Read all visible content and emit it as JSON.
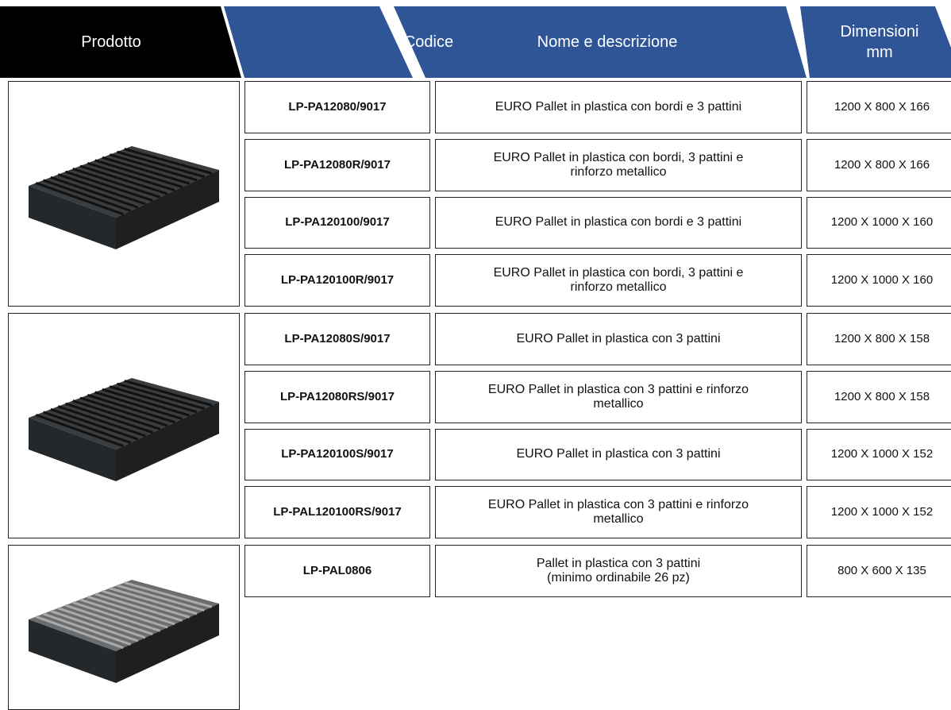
{
  "header": {
    "columns": [
      [
        "Prodotto"
      ],
      [
        "Codice"
      ],
      [
        "Nome e descrizione"
      ],
      [
        "Dimensioni",
        "mm"
      ]
    ]
  },
  "groups": [
    {
      "rows": [
        {
          "code": "LP-PA12080/9017",
          "description": [
            "EURO Pallet in plastica con bordi e 3 pattini"
          ],
          "dimensions": "1200 X 800 X 166"
        },
        {
          "code": "LP-PA12080R/9017",
          "description": [
            "EURO Pallet in plastica con bordi, 3 pattini e",
            "rinforzo metallico"
          ],
          "dimensions": "1200 X 800 X 166"
        },
        {
          "code": "LP-PA120100/9017",
          "description": [
            "EURO Pallet in plastica con bordi e 3 pattini"
          ],
          "dimensions": "1200 X 1000 X 160"
        },
        {
          "code": "LP-PA120100R/9017",
          "description": [
            "EURO Pallet in plastica con bordi, 3 pattini e",
            "rinforzo metallico"
          ],
          "dimensions": "1200 X 1000 X 160"
        }
      ]
    },
    {
      "rows": [
        {
          "code": "LP-PA12080S/9017",
          "description": [
            "EURO Pallet in plastica con 3 pattini"
          ],
          "dimensions": "1200 X 800 X 158"
        },
        {
          "code": "LP-PA12080RS/9017",
          "description": [
            "EURO Pallet in plastica con 3 pattini e rinforzo",
            "metallico"
          ],
          "dimensions": "1200 X 800 X 158"
        },
        {
          "code": "LP-PA120100S/9017",
          "description": [
            "EURO Pallet in plastica con 3 pattini"
          ],
          "dimensions": "1200 X 1000 X 152"
        },
        {
          "code": "LP-PAL120100RS/9017",
          "description": [
            "EURO Pallet in plastica con 3 pattini e rinforzo",
            "metallico"
          ],
          "dimensions": "1200 X 1000 X 152"
        }
      ]
    },
    {
      "rows": [
        {
          "code": "LP-PAL0806",
          "description": [
            "Pallet in plastica con 3 pattini",
            "(minimo ordinabile 26 pz)"
          ],
          "dimensions": "800 X 600 X 135"
        }
      ]
    }
  ]
}
